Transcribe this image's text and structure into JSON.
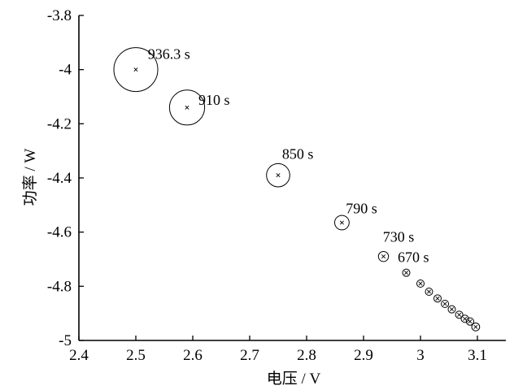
{
  "chart_data": {
    "type": "scatter",
    "title": "",
    "xlabel": "电压 / V",
    "ylabel": "功率 / W",
    "xlim": [
      2.4,
      3.15
    ],
    "ylim": [
      -5.0,
      -3.8
    ],
    "y_reversed": true,
    "grid": false,
    "legend": "none",
    "xticks": [
      2.4,
      2.5,
      2.6,
      2.7,
      2.8,
      2.9,
      3.0,
      3.1
    ],
    "xtick_labels": [
      "2.4",
      "2.5",
      "2.6",
      "2.7",
      "2.8",
      "2.9",
      "3",
      "3.1"
    ],
    "yticks": [
      -3.8,
      -4.0,
      -4.2,
      -4.4,
      -4.6,
      -4.8,
      -5.0
    ],
    "ytick_labels": [
      "-3.8",
      "-4",
      "-4.2",
      "-4.4",
      "-4.6",
      "-4.8",
      "-5"
    ],
    "marker": "x inside circle; circle size grows with time",
    "points": [
      {
        "x": 3.097,
        "y": -4.95,
        "r": 0.18
      },
      {
        "x": 3.087,
        "y": -4.93,
        "r": 0.17
      },
      {
        "x": 3.078,
        "y": -4.92,
        "r": 0.17
      },
      {
        "x": 3.068,
        "y": -4.905,
        "r": 0.16
      },
      {
        "x": 3.055,
        "y": -4.885,
        "r": 0.16
      },
      {
        "x": 3.043,
        "y": -4.865,
        "r": 0.16
      },
      {
        "x": 3.03,
        "y": -4.845,
        "r": 0.15
      },
      {
        "x": 3.015,
        "y": -4.82,
        "r": 0.15
      },
      {
        "x": 3.0,
        "y": -4.79,
        "r": 0.15
      },
      {
        "x": 2.975,
        "y": -4.75,
        "r": 0.15
      },
      {
        "x": 2.935,
        "y": -4.69,
        "r": 0.23
      },
      {
        "x": 2.862,
        "y": -4.565,
        "r": 0.33
      },
      {
        "x": 2.75,
        "y": -4.39,
        "r": 0.53
      },
      {
        "x": 2.59,
        "y": -4.14,
        "r": 0.8
      },
      {
        "x": 2.5,
        "y": -4.0,
        "r": 1.0
      }
    ],
    "annotations": [
      {
        "text": "936.3 s",
        "x": 2.521,
        "y": -3.96
      },
      {
        "text": "910 s",
        "x": 2.61,
        "y": -4.13
      },
      {
        "text": "850 s",
        "x": 2.757,
        "y": -4.33
      },
      {
        "text": "790 s",
        "x": 2.869,
        "y": -4.53
      },
      {
        "text": "730 s",
        "x": 2.934,
        "y": -4.635
      },
      {
        "text": "670 s",
        "x": 2.96,
        "y": -4.71
      }
    ]
  }
}
